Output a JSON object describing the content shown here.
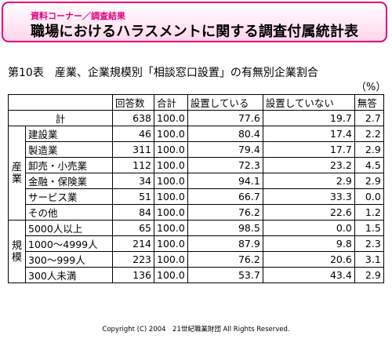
{
  "banner": {
    "subtitle": "資料コーナー／調査結果",
    "title": "職場におけるハラスメントに関する調査付属統計表",
    "accent_color": "#e4007f"
  },
  "caption": "第10表　産業、企業規模別「相談窓口設置」の有無別企業割合",
  "unit": "（%）",
  "columns": [
    "回答数",
    "合計",
    "設置している",
    "設置していない",
    "無答"
  ],
  "total": {
    "label": "計",
    "cells": [
      "638",
      "100.0",
      "77.6",
      "19.7",
      "2.7"
    ]
  },
  "groups": [
    {
      "label_chars": [
        "産",
        "業"
      ],
      "rows": [
        {
          "label": "建設業",
          "cells": [
            "46",
            "100.0",
            "80.4",
            "17.4",
            "2.2"
          ]
        },
        {
          "label": "製造業",
          "cells": [
            "311",
            "100.0",
            "79.4",
            "17.7",
            "2.9"
          ]
        },
        {
          "label": "卸売・小売業",
          "cells": [
            "112",
            "100.0",
            "72.3",
            "23.2",
            "4.5"
          ]
        },
        {
          "label": "金融・保険業",
          "cells": [
            "34",
            "100.0",
            "94.1",
            "2.9",
            "2.9"
          ]
        },
        {
          "label": "サービス業",
          "cells": [
            "51",
            "100.0",
            "66.7",
            "33.3",
            "0.0"
          ]
        },
        {
          "label": "その他",
          "cells": [
            "84",
            "100.0",
            "76.2",
            "22.6",
            "1.2"
          ]
        }
      ]
    },
    {
      "label_chars": [
        "規",
        "模"
      ],
      "rows": [
        {
          "label": "5000人以上",
          "cells": [
            "65",
            "100.0",
            "98.5",
            "0.0",
            "1.5"
          ]
        },
        {
          "label": "1000～4999人",
          "cells": [
            "214",
            "100.0",
            "87.9",
            "9.8",
            "2.3"
          ]
        },
        {
          "label": "300～999人",
          "cells": [
            "223",
            "100.0",
            "76.2",
            "20.6",
            "3.1"
          ]
        },
        {
          "label": "300人未満",
          "cells": [
            "136",
            "100.0",
            "53.7",
            "43.4",
            "2.9"
          ]
        }
      ]
    }
  ],
  "footer": "Copyright (C) 2004　21世紀職業財団 All Rights Reserved."
}
